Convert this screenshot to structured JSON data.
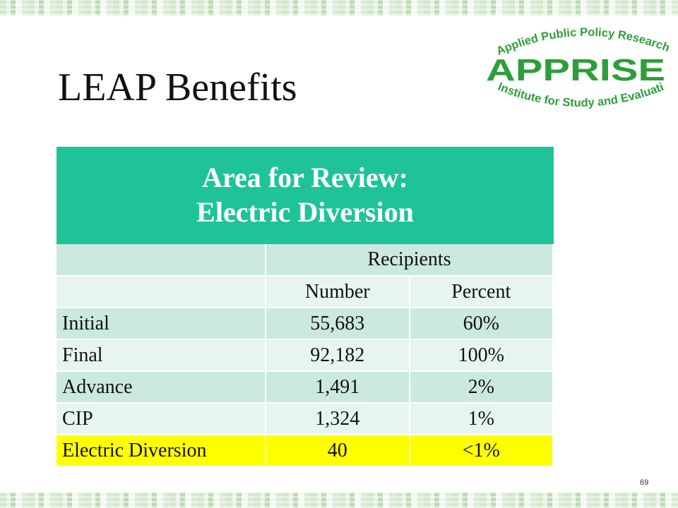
{
  "slide": {
    "title": "LEAP Benefits",
    "page_number": "69"
  },
  "logo": {
    "top_text": "Applied Public Policy Research",
    "main_text": "APPRISE",
    "bottom_text": "Institute for Study and Evaluation",
    "color": "#2e9e3a"
  },
  "table": {
    "header_line1": "Area for Review:",
    "header_line2": "Electric Diversion",
    "group_label": "Recipients",
    "col_number": "Number",
    "col_percent": "Percent",
    "rows": [
      {
        "label": "Initial",
        "number": "55,683",
        "percent": "60%"
      },
      {
        "label": "Final",
        "number": "92,182",
        "percent": "100%"
      },
      {
        "label": "Advance",
        "number": "1,491",
        "percent": "2%"
      },
      {
        "label": "CIP",
        "number": "1,324",
        "percent": "1%"
      },
      {
        "label": "Electric Diversion",
        "number": "40",
        "percent": "<1%"
      }
    ],
    "colors": {
      "header": "#1fc39a",
      "row_dark": "#cbe9e0",
      "row_light": "#e7f5f0",
      "highlight": "#ffff00"
    }
  }
}
